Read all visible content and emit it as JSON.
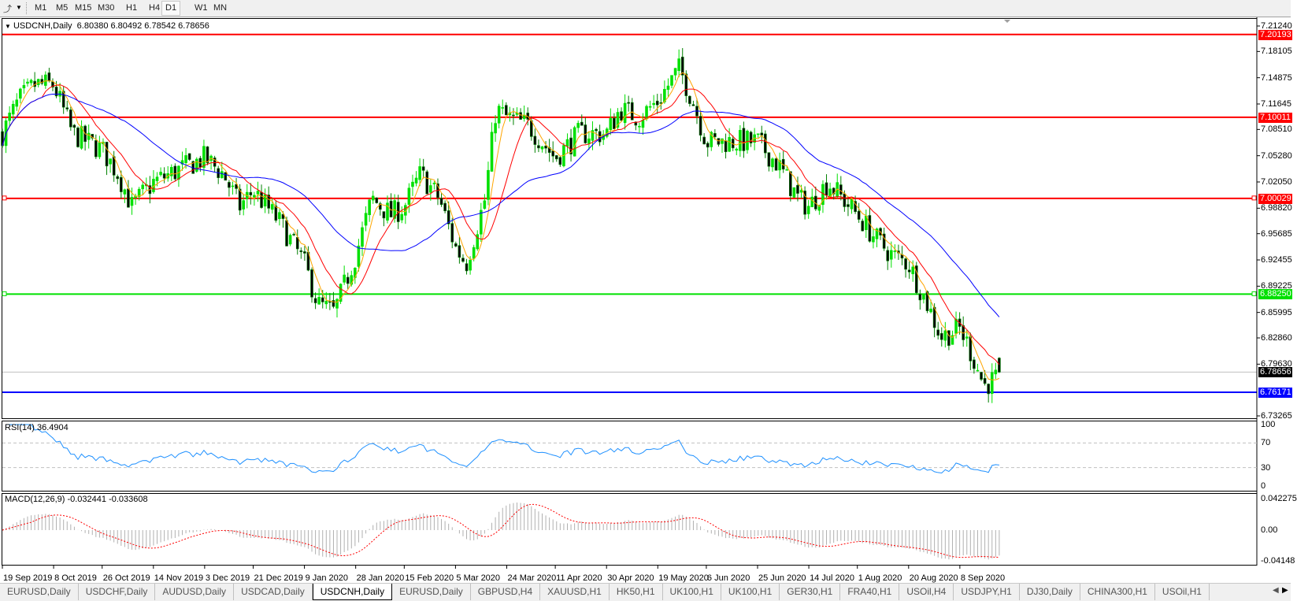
{
  "toolbar": {
    "timeframes": [
      "M1",
      "M5",
      "M15",
      "M30",
      "H1",
      "H4",
      "D1",
      "W1",
      "MN"
    ],
    "active": "D1"
  },
  "chart": {
    "title": "USDCNH,Daily",
    "ohlc": "6.80380 6.80492 6.78542 6.78656",
    "price_ticks": [
      "7.21240",
      "7.18105",
      "7.14875",
      "7.11645",
      "7.08510",
      "7.05280",
      "7.02050",
      "6.98820",
      "6.95685",
      "6.92455",
      "6.89225",
      "6.85995",
      "6.82860",
      "6.79630",
      "6.73265"
    ],
    "levels": [
      {
        "value": "7.20193",
        "color": "#ff0000"
      },
      {
        "value": "7.10011",
        "color": "#ff0000"
      },
      {
        "value": "7.00029",
        "color": "#ff0000"
      },
      {
        "value": "6.88250",
        "color": "#00e000"
      },
      {
        "value": "6.76171",
        "color": "#0000ff"
      }
    ],
    "bid": {
      "value": "6.78656",
      "color": "#000000"
    },
    "date_labels": [
      "19 Sep 2019",
      "8 Oct 2019",
      "26 Oct 2019",
      "14 Nov 2019",
      "3 Dec 2019",
      "21 Dec 2019",
      "9 Jan 2020",
      "28 Jan 2020",
      "15 Feb 2020",
      "5 Mar 2020",
      "24 Mar 2020",
      "11 Apr 2020",
      "30 Apr 2020",
      "19 May 2020",
      "6 Jun 2020",
      "25 Jun 2020",
      "14 Jul 2020",
      "1 Aug 2020",
      "20 Aug 2020",
      "8 Sep 2020"
    ]
  },
  "rsi": {
    "label": "RSI(14) 36.4904",
    "ticks": [
      "100",
      "70",
      "30",
      "0"
    ],
    "color": "#1e90ff"
  },
  "macd": {
    "label": "MACD(12,26,9) -0.032441 -0.033608",
    "ticks": [
      "0.042275",
      "0.00",
      "-0.04148"
    ]
  },
  "chart_data": {
    "type": "candlestick",
    "symbol": "USDCNH",
    "timeframe": "Daily",
    "last_bar": {
      "open": 6.8038,
      "high": 6.80492,
      "low": 6.78542,
      "close": 6.78656
    },
    "approx_closes": [
      [
        "2019-09-19",
        7.08
      ],
      [
        "2019-09-25",
        7.12
      ],
      [
        "2019-10-01",
        7.14
      ],
      [
        "2019-10-08",
        7.14
      ],
      [
        "2019-10-15",
        7.08
      ],
      [
        "2019-10-26",
        7.06
      ],
      [
        "2019-11-01",
        7.03
      ],
      [
        "2019-11-06",
        6.99
      ],
      [
        "2019-11-14",
        7.02
      ],
      [
        "2019-11-20",
        7.03
      ],
      [
        "2019-12-03",
        7.05
      ],
      [
        "2019-12-10",
        7.03
      ],
      [
        "2019-12-16",
        6.99
      ],
      [
        "2019-12-21",
        7.01
      ],
      [
        "2019-12-31",
        6.97
      ],
      [
        "2020-01-09",
        6.92
      ],
      [
        "2020-01-14",
        6.87
      ],
      [
        "2020-01-20",
        6.86
      ],
      [
        "2020-01-28",
        6.93
      ],
      [
        "2020-02-03",
        7.0
      ],
      [
        "2020-02-10",
        6.98
      ],
      [
        "2020-02-15",
        6.99
      ],
      [
        "2020-02-21",
        7.03
      ],
      [
        "2020-02-28",
        7.0
      ],
      [
        "2020-03-05",
        6.94
      ],
      [
        "2020-03-09",
        6.92
      ],
      [
        "2020-03-16",
        7.0
      ],
      [
        "2020-03-20",
        7.11
      ],
      [
        "2020-03-24",
        7.1
      ],
      [
        "2020-04-01",
        7.09
      ],
      [
        "2020-04-11",
        7.05
      ],
      [
        "2020-04-20",
        7.08
      ],
      [
        "2020-04-30",
        7.08
      ],
      [
        "2020-05-05",
        7.11
      ],
      [
        "2020-05-12",
        7.1
      ],
      [
        "2020-05-19",
        7.12
      ],
      [
        "2020-05-27",
        7.16
      ],
      [
        "2020-06-01",
        7.12
      ],
      [
        "2020-06-06",
        7.07
      ],
      [
        "2020-06-15",
        7.07
      ],
      [
        "2020-06-25",
        7.07
      ],
      [
        "2020-07-03",
        7.04
      ],
      [
        "2020-07-10",
        7.0
      ],
      [
        "2020-07-14",
        6.99
      ],
      [
        "2020-07-21",
        7.02
      ],
      [
        "2020-08-01",
        6.98
      ],
      [
        "2020-08-08",
        6.95
      ],
      [
        "2020-08-14",
        6.93
      ],
      [
        "2020-08-20",
        6.92
      ],
      [
        "2020-08-27",
        6.87
      ],
      [
        "2020-09-01",
        6.83
      ],
      [
        "2020-09-08",
        6.84
      ],
      [
        "2020-09-11",
        6.82
      ],
      [
        "2020-09-17",
        6.77
      ],
      [
        "2020-09-22",
        6.78
      ],
      [
        "2020-09-24",
        6.8
      ]
    ],
    "moving_averages": [
      {
        "color": "#ffa500"
      },
      {
        "color": "#ff0000"
      },
      {
        "color": "#0000ff"
      }
    ],
    "candle_colors": {
      "bull": "#00e000",
      "bear": "#008000"
    }
  },
  "tabs": [
    "EURUSD,Daily",
    "USDCHF,Daily",
    "AUDUSD,Daily",
    "USDCAD,Daily",
    "USDCNH,Daily",
    "EURUSD,Daily",
    "GBPUSD,H4",
    "XAUUSD,H1",
    "HK50,H1",
    "UK100,H1",
    "UK100,H1",
    "GER30,H1",
    "FRA40,H1",
    "USOil,H4",
    "USDJPY,H1",
    "DJ30,Daily",
    "CHINA300,H1",
    "USOil,H1"
  ],
  "active_tab": "USDCNH,Daily"
}
